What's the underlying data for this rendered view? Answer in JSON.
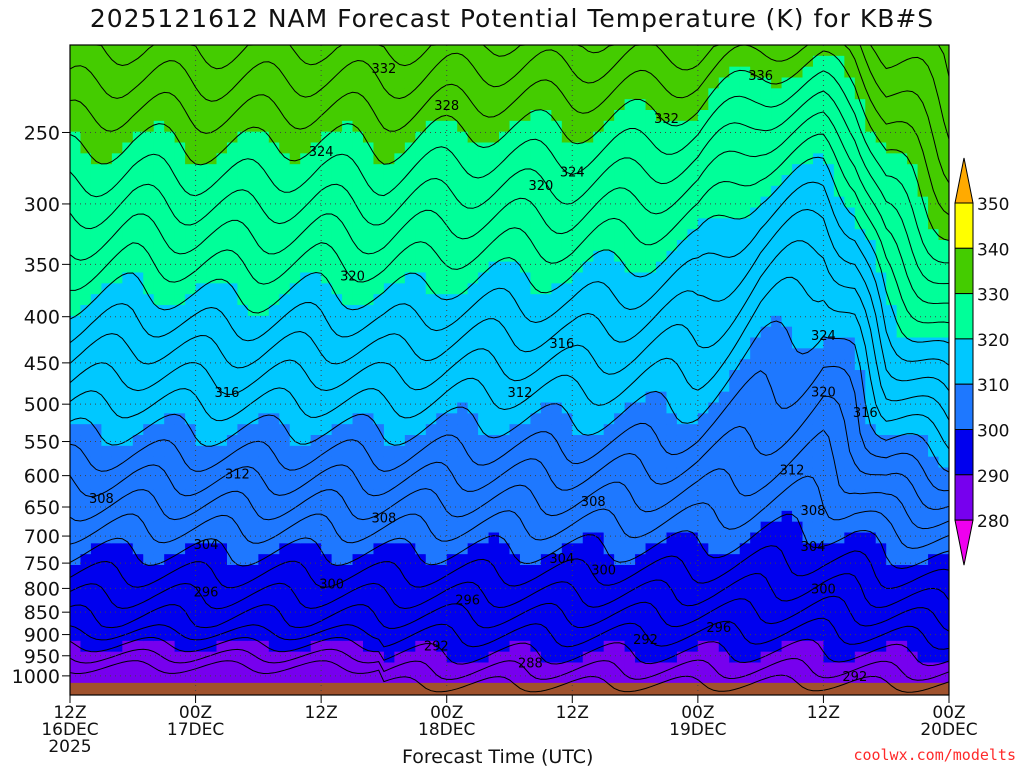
{
  "chart_data": {
    "type": "heatmap",
    "title": "2025121612 NAM Forecast Potential Temperature (K) for KB#S",
    "xlabel": "Forecast Time (UTC)",
    "ylabel": "",
    "x_ticks": [
      {
        "lines": [
          "12Z",
          "16DEC",
          "2025"
        ]
      },
      {
        "lines": [
          "00Z",
          "17DEC"
        ]
      },
      {
        "lines": [
          "12Z"
        ]
      },
      {
        "lines": [
          "00Z",
          "18DEC"
        ]
      },
      {
        "lines": [
          "12Z"
        ]
      },
      {
        "lines": [
          "00Z",
          "19DEC"
        ]
      },
      {
        "lines": [
          "12Z"
        ]
      },
      {
        "lines": [
          "00Z",
          "20DEC"
        ]
      }
    ],
    "x_range_hours": [
      0,
      84
    ],
    "y_ticks": [
      250,
      300,
      350,
      400,
      450,
      500,
      550,
      600,
      650,
      700,
      750,
      800,
      850,
      900,
      950,
      1000
    ],
    "y_range_hPa": [
      200,
      1050
    ],
    "y_scale": "log-pressure",
    "grid": true,
    "colorbar": {
      "labels": [
        "350",
        "340",
        "330",
        "320",
        "310",
        "300",
        "290",
        "280"
      ],
      "levels": [
        350,
        340,
        330,
        320,
        310,
        300,
        290,
        280
      ],
      "colors": [
        "#ffaa00",
        "#ffff00",
        "#44cc00",
        "#00ff99",
        "#00c8ff",
        "#1e78ff",
        "#0000ee",
        "#7700ee",
        "#ee00ee"
      ]
    },
    "contour_labels": [
      {
        "text": "332",
        "h": 30,
        "p": 212
      },
      {
        "text": "328",
        "h": 36,
        "p": 233
      },
      {
        "text": "324",
        "h": 24,
        "p": 262
      },
      {
        "text": "324",
        "h": 48,
        "p": 276
      },
      {
        "text": "332",
        "h": 57,
        "p": 241
      },
      {
        "text": "336",
        "h": 66,
        "p": 216
      },
      {
        "text": "320",
        "h": 45,
        "p": 286
      },
      {
        "text": "320",
        "h": 27,
        "p": 360
      },
      {
        "text": "316",
        "h": 47,
        "p": 428
      },
      {
        "text": "316",
        "h": 15,
        "p": 485
      },
      {
        "text": "312",
        "h": 43,
        "p": 485
      },
      {
        "text": "324",
        "h": 72,
        "p": 419
      },
      {
        "text": "320",
        "h": 72,
        "p": 484
      },
      {
        "text": "316",
        "h": 76,
        "p": 510
      },
      {
        "text": "312",
        "h": 16,
        "p": 597
      },
      {
        "text": "312",
        "h": 69,
        "p": 591
      },
      {
        "text": "308",
        "h": 3,
        "p": 635
      },
      {
        "text": "308",
        "h": 30,
        "p": 668
      },
      {
        "text": "308",
        "h": 50,
        "p": 640
      },
      {
        "text": "308",
        "h": 71,
        "p": 655
      },
      {
        "text": "304",
        "h": 13,
        "p": 714
      },
      {
        "text": "304",
        "h": 47,
        "p": 740
      },
      {
        "text": "304",
        "h": 71,
        "p": 718
      },
      {
        "text": "300",
        "h": 25,
        "p": 790
      },
      {
        "text": "300",
        "h": 51,
        "p": 762
      },
      {
        "text": "300",
        "h": 72,
        "p": 800
      },
      {
        "text": "296",
        "h": 13,
        "p": 806
      },
      {
        "text": "296",
        "h": 38,
        "p": 823
      },
      {
        "text": "296",
        "h": 62,
        "p": 883
      },
      {
        "text": "292",
        "h": 35,
        "p": 925
      },
      {
        "text": "292",
        "h": 55,
        "p": 910
      },
      {
        "text": "292",
        "h": 75,
        "p": 1000
      },
      {
        "text": "288",
        "h": 44,
        "p": 967
      }
    ],
    "credit": "coolwx.com/modelts"
  }
}
